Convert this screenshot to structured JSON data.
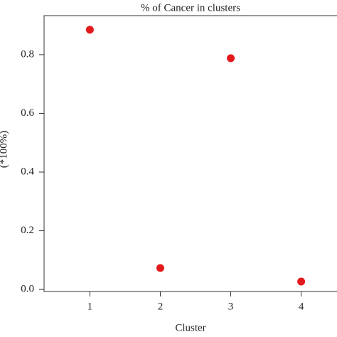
{
  "chart_data": {
    "type": "scatter",
    "title": "% of Cancer in clusters",
    "x_label": "Cluster",
    "y_label": "(*100%)",
    "x": [
      1,
      2,
      3,
      4
    ],
    "values": [
      0.885,
      0.073,
      0.788,
      0.027
    ],
    "color": "#e31a1c",
    "xlim": [
      0.35,
      4.65
    ],
    "xticks": [
      1,
      2,
      3,
      4
    ],
    "ylim": [
      -0.007,
      0.933
    ],
    "yticks": [
      {
        "value": 0,
        "label": "0.0"
      },
      0.2,
      0.4,
      0.6,
      0.8
    ]
  }
}
